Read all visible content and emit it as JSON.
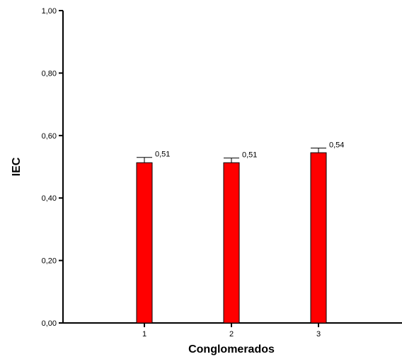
{
  "chart_data": {
    "type": "bar",
    "categories": [
      "1",
      "2",
      "3"
    ],
    "values": [
      0.513,
      0.513,
      0.545
    ],
    "error_upper": [
      0.53,
      0.528,
      0.56
    ],
    "data_labels": [
      "0,51",
      "0,51",
      "0,54"
    ],
    "xlabel": "Conglomerados",
    "ylabel": "IEC",
    "ylim": [
      0,
      1
    ],
    "yticks": [
      0,
      0.2,
      0.4,
      0.6,
      0.8,
      1.0
    ],
    "ytick_labels": [
      "0,00",
      "0,20",
      "0,40",
      "0,60",
      "0,80",
      "1,00"
    ],
    "bar_color": "#ff0000",
    "grid": false,
    "legend": "none"
  }
}
